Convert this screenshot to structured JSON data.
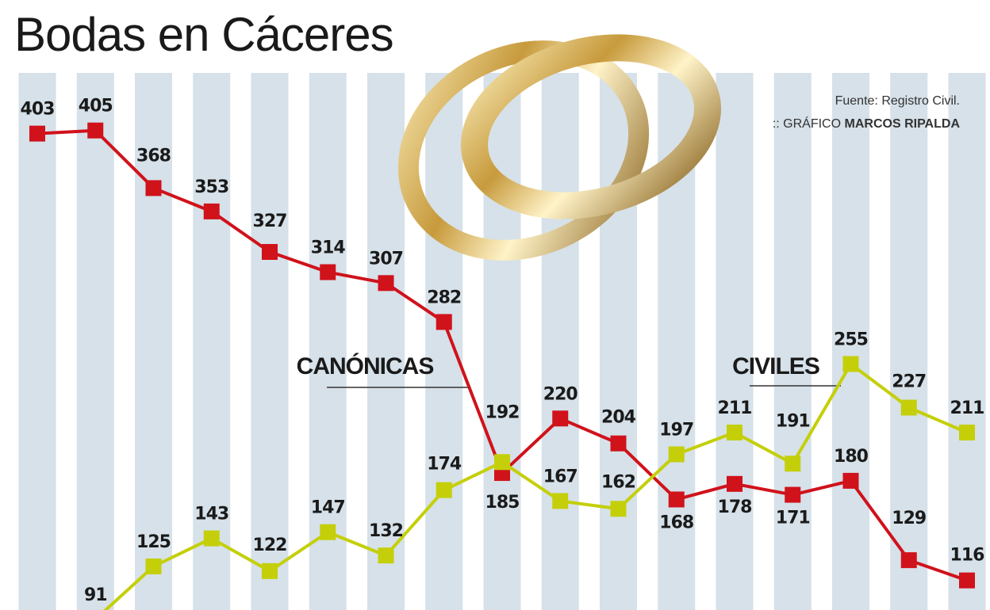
{
  "chart_data": {
    "type": "line",
    "title": "Bodas en Cáceres",
    "source": "Fuente: Registro Civil.",
    "credit_label": ":: GRÁFICO",
    "credit_name": "MARCOS RIPALDA",
    "categories": [
      null,
      null,
      null,
      null,
      null,
      null,
      null,
      null,
      null,
      null,
      null,
      null,
      null,
      null,
      null,
      null,
      null
    ],
    "series": [
      {
        "name": "CANÓNICAS",
        "color": "#d0121b",
        "values": [
          403,
          405,
          368,
          353,
          327,
          314,
          307,
          282,
          185,
          220,
          204,
          168,
          178,
          171,
          180,
          129,
          116
        ]
      },
      {
        "name": "CIVILES",
        "color": "#c4cf0a",
        "values": [
          null,
          91,
          125,
          143,
          122,
          147,
          132,
          174,
          192,
          167,
          162,
          197,
          211,
          191,
          255,
          227,
          211
        ]
      }
    ],
    "ylim": [
      97,
      442
    ]
  }
}
